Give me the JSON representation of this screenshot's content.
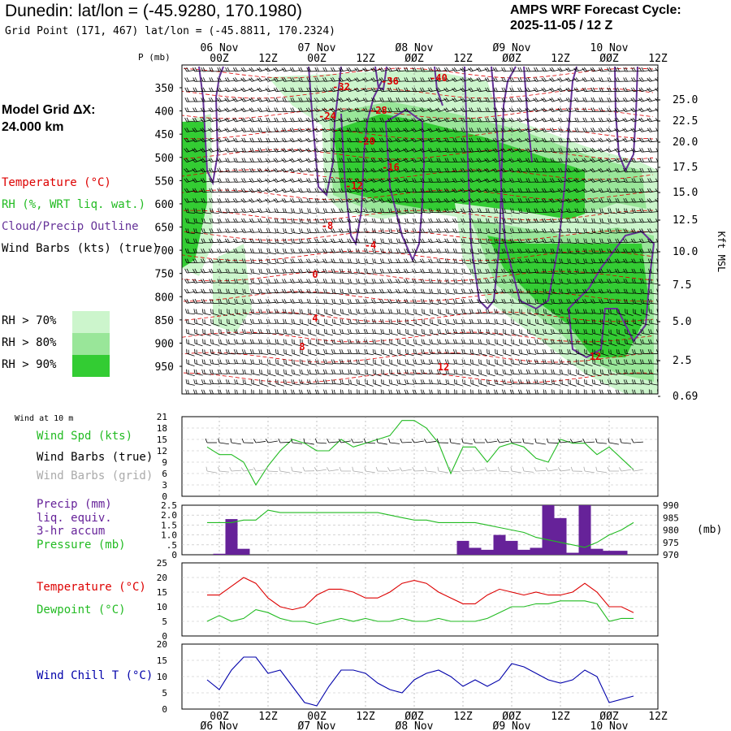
{
  "header": {
    "title": "Dunedin:  lat/lon = (-45.9280, 170.1980)",
    "grid_point": "Grid Point (171, 467) lat/lon = (-45.8811, 170.2324)",
    "forecast_label": "AMPS WRF Forecast Cycle:",
    "forecast_cycle": "2025-11-05 / 12  Z",
    "p_unit": "P (mb)"
  },
  "legend": {
    "model_grid": "Model Grid ΔX:",
    "model_grid_value": " 24.000 km",
    "temperature": "Temperature (°C)",
    "rh": "RH (%, WRT liq. wat.)",
    "cloud": "Cloud/Precip Outline",
    "wind": "Wind Barbs (kts) (true)",
    "rh70": "RH > 70%",
    "rh80": "RH > 80%",
    "rh90": "RH > 90%"
  },
  "colors": {
    "temperature": "#dd0000",
    "rh": "#22bb22",
    "cloud": "#663399",
    "precip": "#662299",
    "rh70": "#ccf5cc",
    "rh80": "#99e699",
    "rh90": "#33cc33",
    "wind_chill": "#0000aa",
    "wind_grid": "#aaaaaa"
  },
  "time_axis": {
    "top_dates": [
      "06 Nov",
      "07 Nov",
      "Ø8 Nov",
      "Ø9 Nov",
      "10 Nov"
    ],
    "top_ticks": [
      "00Z",
      "12Z",
      "00Z",
      "12Z",
      "ØØZ",
      "12Z",
      "ØØZ",
      "12Z",
      "ØØZ",
      "12Z"
    ],
    "bottom_ticks": [
      "00Z",
      "12Z",
      "00Z",
      "12Z",
      "ØØZ",
      "12Z",
      "ØØZ",
      "12Z",
      "ØØZ",
      "12Z"
    ],
    "bottom_dates": [
      "Ø6 Nov",
      "Ø7 Nov",
      "Ø8 Nov",
      "Ø9 Nov",
      "10 Nov"
    ]
  },
  "sounding": {
    "pressure_levels": [
      "350",
      "400",
      "450",
      "500",
      "550",
      "600",
      "650",
      "700",
      "750",
      "800",
      "850",
      "900",
      "950"
    ],
    "height_ticks": [
      "25.0",
      "22.5",
      "20.0",
      "17.5",
      "15.0",
      "12.5",
      "10.0",
      "7.5",
      "5.0",
      "2.5",
      "0.69"
    ],
    "height_unit": "Kft MSL",
    "temp_labels": [
      "-40",
      "-36",
      "-32",
      "-28",
      "-24",
      "-20",
      "-16",
      "-12",
      "-8",
      "-4",
      "0",
      "4",
      "8",
      "12",
      "12"
    ]
  },
  "panels": {
    "wind": {
      "corner_label": "Wind at 10 m",
      "spd_label": "Wind Spd (kts)",
      "barbs_true_label": "Wind Barbs (true)",
      "barbs_grid_label": "Wind Barbs (grid)",
      "yticks": [
        "21",
        "18",
        "15",
        "12",
        "9",
        "6",
        "3",
        "0"
      ]
    },
    "precip": {
      "label1": "Precip (mm)",
      "label2": "liq. equiv.",
      "label3": "3-hr accum",
      "label4": "Pressure (mb)",
      "yticks": [
        "2.5",
        "2.0",
        "1.5",
        "1.0",
        ".5",
        "0"
      ],
      "rticks": [
        "990",
        "985",
        "980",
        "975",
        "970"
      ],
      "runit": "(mb)"
    },
    "temp": {
      "temp_label": "Temperature (°C)",
      "dew_label": "Dewpoint (°C)",
      "yticks": [
        "25",
        "20",
        "15",
        "10",
        "5",
        "0"
      ]
    },
    "chill": {
      "label": "Wind Chill T (°C)",
      "yticks": [
        "20",
        "15",
        "10",
        "5",
        "0"
      ]
    }
  },
  "chart_data": [
    {
      "type": "line",
      "title": "Wind at 10 m",
      "ylabel": "Wind Spd (kts)",
      "x_hours": [
        -3,
        0,
        3,
        6,
        9,
        12,
        15,
        18,
        21,
        24,
        27,
        30,
        33,
        36,
        39,
        42,
        45,
        48,
        51,
        54,
        57,
        60,
        63,
        66,
        69,
        72,
        75,
        78,
        81,
        84,
        87,
        90,
        93,
        96,
        99,
        102
      ],
      "ylim": [
        0,
        21
      ],
      "series": [
        {
          "name": "Wind Spd (kts)",
          "values": [
            13,
            11,
            11,
            9,
            3,
            8,
            12,
            15,
            14,
            12,
            12,
            15,
            13,
            14,
            15,
            16,
            20,
            20,
            18,
            14,
            6,
            13,
            13,
            9,
            13,
            14,
            13,
            10,
            9,
            15,
            14,
            14,
            11,
            13,
            10,
            7
          ]
        }
      ]
    },
    {
      "type": "bar",
      "title": "Precip (mm) liq. equiv. 3-hr accum",
      "x_hours": [
        -3,
        0,
        3,
        6,
        9,
        12,
        15,
        18,
        21,
        24,
        27,
        30,
        33,
        36,
        39,
        42,
        45,
        48,
        51,
        54,
        57,
        60,
        63,
        66,
        69,
        72,
        75,
        78,
        81,
        84,
        87,
        90,
        93,
        96,
        99,
        102
      ],
      "ylim": [
        0,
        2.5
      ],
      "series": [
        {
          "name": "Precip (mm)",
          "values": [
            0,
            0.05,
            1.8,
            0.3,
            0,
            0,
            0,
            0,
            0,
            0,
            0,
            0,
            0,
            0,
            0,
            0,
            0,
            0,
            0,
            0,
            0,
            0.7,
            0.35,
            0.25,
            1.0,
            0.7,
            0.25,
            0.35,
            2.5,
            1.85,
            0.1,
            2.5,
            0.3,
            0.2,
            0.2,
            0
          ]
        },
        {
          "name": "Pressure (mb)",
          "values": [
            983,
            983,
            983,
            984,
            984,
            988,
            987,
            987,
            987,
            987,
            987,
            987,
            987,
            987,
            987,
            986,
            985,
            984,
            984,
            983,
            983,
            983,
            983,
            982,
            981,
            980,
            979,
            977,
            976,
            975,
            974,
            973,
            975,
            978,
            980,
            983
          ]
        }
      ],
      "y2lim": [
        970,
        990
      ]
    },
    {
      "type": "line",
      "title": "Temperature / Dewpoint",
      "x_hours": [
        -3,
        0,
        3,
        6,
        9,
        12,
        15,
        18,
        21,
        24,
        27,
        30,
        33,
        36,
        39,
        42,
        45,
        48,
        51,
        54,
        57,
        60,
        63,
        66,
        69,
        72,
        75,
        78,
        81,
        84,
        87,
        90,
        93,
        96,
        99,
        102
      ],
      "ylim": [
        0,
        25
      ],
      "series": [
        {
          "name": "Temperature (°C)",
          "values": [
            14,
            14,
            17,
            20,
            18,
            13,
            10,
            9,
            10,
            14,
            16,
            16,
            15,
            13,
            13,
            15,
            18,
            19,
            18,
            15,
            13,
            11,
            11,
            14,
            16,
            15,
            14,
            15,
            14,
            14,
            15,
            18,
            15,
            10,
            10,
            8
          ]
        },
        {
          "name": "Dewpoint (°C)",
          "values": [
            5,
            7,
            5,
            6,
            9,
            8,
            6,
            5,
            5,
            4,
            5,
            6,
            5,
            6,
            5,
            5,
            6,
            5,
            5,
            6,
            5,
            5,
            5,
            6,
            8,
            10,
            10,
            11,
            11,
            12,
            12,
            12,
            11,
            5,
            6,
            6
          ]
        }
      ]
    },
    {
      "type": "line",
      "title": "Wind Chill T",
      "x_hours": [
        -3,
        0,
        3,
        6,
        9,
        12,
        15,
        18,
        21,
        24,
        27,
        30,
        33,
        36,
        39,
        42,
        45,
        48,
        51,
        54,
        57,
        60,
        63,
        66,
        69,
        72,
        75,
        78,
        81,
        84,
        87,
        90,
        93,
        96,
        99,
        102
      ],
      "ylim": [
        0,
        20
      ],
      "series": [
        {
          "name": "Wind Chill T (°C)",
          "values": [
            9,
            6,
            12,
            16,
            16,
            11,
            12,
            7,
            2,
            1,
            7,
            12,
            12,
            11,
            8,
            6,
            5,
            9,
            11,
            12,
            10,
            7,
            9,
            7,
            9,
            14,
            13,
            11,
            9,
            8,
            9,
            12,
            10,
            2,
            3,
            4
          ]
        }
      ]
    }
  ]
}
